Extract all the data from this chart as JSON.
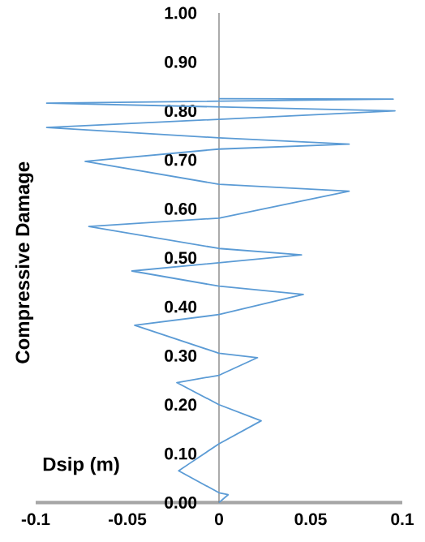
{
  "chart_data": {
    "type": "line",
    "xlabel": "Dsip (m)",
    "ylabel": "Compressive Damage",
    "x": [
      0,
      0.005,
      0,
      -0.022,
      -0.016,
      0,
      0.023,
      0,
      -0.023,
      0,
      0.021,
      0,
      -0.046,
      0,
      0.046,
      0,
      -0.0475,
      0.045,
      0,
      -0.071,
      0,
      0.071,
      0,
      -0.073,
      0,
      0.071,
      0,
      -0.094,
      0.096,
      -0.094,
      0.095,
      0
    ],
    "values": [
      0,
      0.016,
      0.02,
      0.065,
      0.08,
      0.12,
      0.167,
      0.2,
      0.245,
      0.26,
      0.296,
      0.305,
      0.362,
      0.384,
      0.425,
      0.442,
      0.473,
      0.506,
      0.519,
      0.564,
      0.581,
      0.636,
      0.65,
      0.697,
      0.722,
      0.732,
      0.745,
      0.766,
      0.8,
      0.816,
      0.824,
      0.825
    ],
    "color": "#5b9bd5",
    "xlim": [
      -0.1,
      0.1
    ],
    "ylim": [
      0,
      1
    ],
    "xticks": [
      -0.1,
      -0.05,
      0,
      0.05,
      0.1
    ],
    "yticks": [
      {
        "value": 0,
        "label": "0.00"
      },
      {
        "value": 0.1,
        "label": "0.10"
      },
      {
        "value": 0.2,
        "label": "0.20"
      },
      {
        "value": 0.3,
        "label": "0.30"
      },
      {
        "value": 0.4,
        "label": "0.40"
      },
      {
        "value": 0.5,
        "label": "0.50"
      },
      {
        "value": 0.6,
        "label": "0.60"
      },
      {
        "value": 0.7,
        "label": "0.70"
      },
      {
        "value": 0.8,
        "label": "0.80"
      },
      {
        "value": 0.9,
        "label": "0.90"
      },
      {
        "value": 1,
        "label": "1.00"
      }
    ]
  }
}
